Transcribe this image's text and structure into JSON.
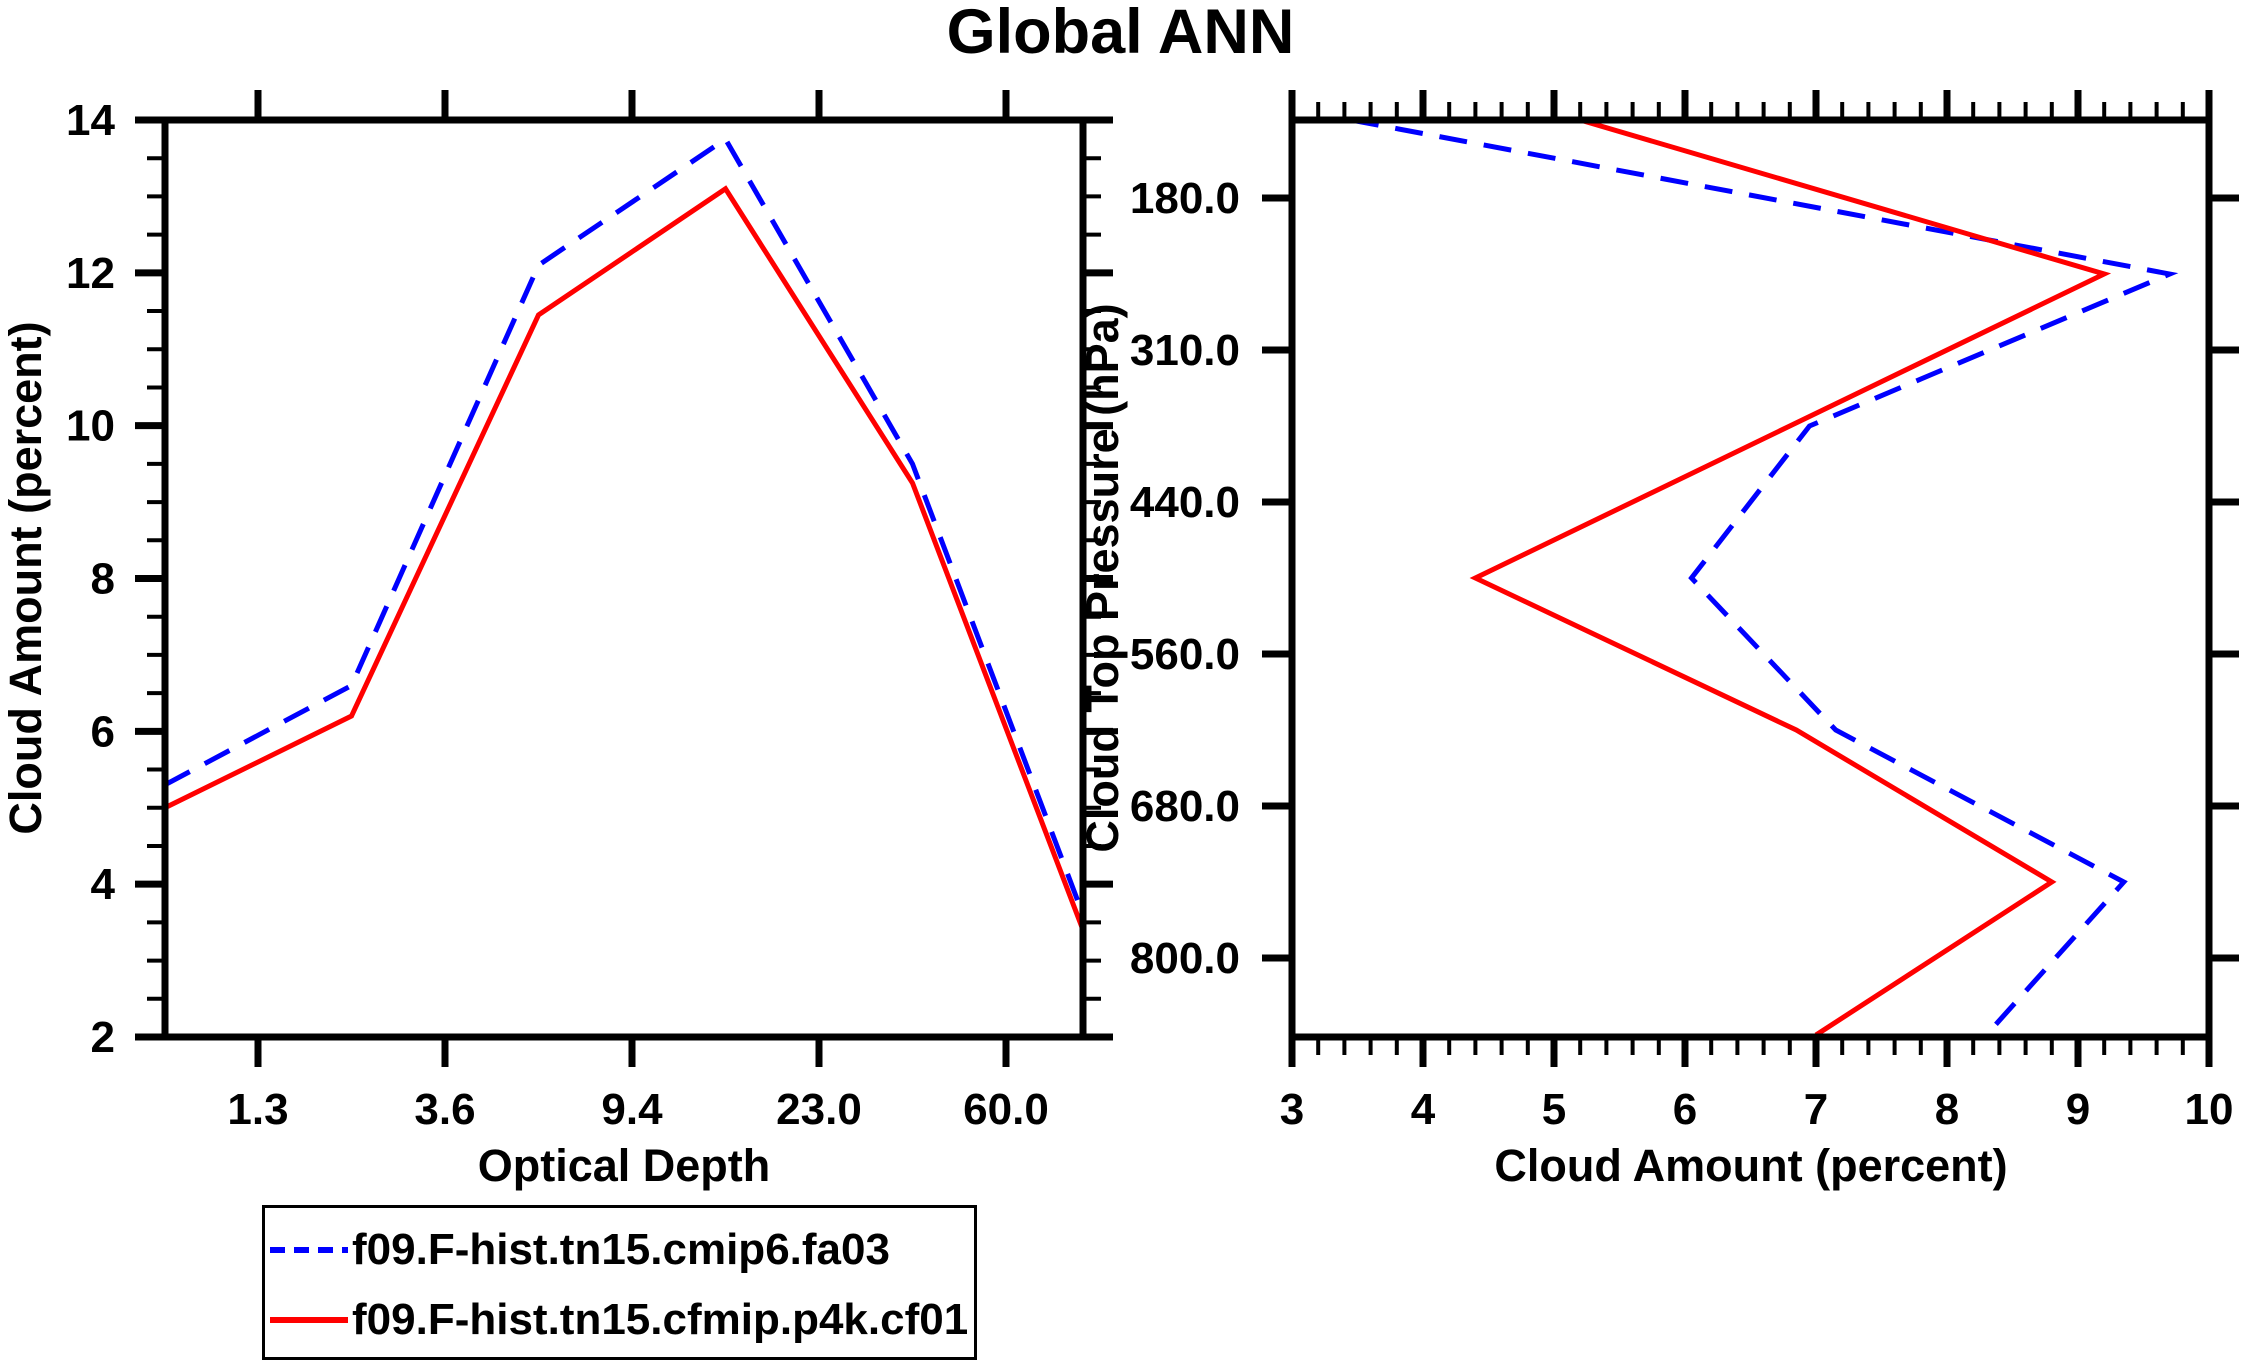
{
  "title": "Global ANN",
  "colors": {
    "background": "#FFFFFF",
    "axis": "#000000",
    "series_dashed": "#0000FF",
    "series_solid": "#FF0000"
  },
  "legend": {
    "entries": [
      {
        "label": "f09.F-hist.tn15.cmip6.fa03",
        "color": "#0000FF",
        "line_style": "dashed"
      },
      {
        "label": "f09.F-hist.tn15.cfmip.p4k.cf01",
        "color": "#FF0000",
        "line_style": "solid"
      }
    ]
  },
  "chart_data": [
    {
      "type": "line",
      "panel": "left",
      "title": "Global ANN",
      "xlabel": "Optical Depth",
      "ylabel": "Cloud Amount (percent)",
      "x_tick_labels": [
        "1.3",
        "3.6",
        "9.4",
        "23.0",
        "60.0"
      ],
      "x_layout": "6 points per series: first on left axis edge, last on right axis edge, middle points midway between adjacent labeled ticks",
      "ylim": [
        2,
        14
      ],
      "y_major_ticks": [
        2,
        4,
        6,
        8,
        10,
        12,
        14
      ],
      "y_minor_step": 0.5,
      "grid": "off",
      "series": [
        {
          "name": "f09.F-hist.tn15.cmip6.fa03",
          "style": "dashed",
          "color": "#0000FF",
          "values": [
            5.3,
            6.6,
            12.1,
            13.75,
            9.5,
            3.6
          ]
        },
        {
          "name": "f09.F-hist.tn15.cfmip.p4k.cf01",
          "style": "solid",
          "color": "#FF0000",
          "values": [
            5.0,
            6.2,
            11.45,
            13.1,
            9.25,
            3.4
          ]
        }
      ]
    },
    {
      "type": "line",
      "panel": "right",
      "xlabel": "Cloud Amount (percent)",
      "ylabel": "Cloud Top Pressure (hPa)",
      "xlim": [
        3,
        10
      ],
      "x_major_ticks": [
        3,
        4,
        5,
        6,
        7,
        8,
        9,
        10
      ],
      "x_minor_step": 0.2,
      "y_tick_labels": [
        "180.0",
        "310.0",
        "440.0",
        "560.0",
        "680.0",
        "800.0"
      ],
      "y_layout": "pressure increases downward; 7 points per series evenly spaced from top edge to bottom edge, labeled ticks sit at bin boundaries between points",
      "grid": "off",
      "series": [
        {
          "name": "f09.F-hist.tn15.cmip6.fa03",
          "style": "dashed",
          "color": "#0000FF",
          "values": [
            3.45,
            9.7,
            6.95,
            6.05,
            7.15,
            9.35,
            8.3
          ]
        },
        {
          "name": "f09.F-hist.tn15.cfmip.p4k.cf01",
          "style": "solid",
          "color": "#FF0000",
          "values": [
            5.2,
            9.2,
            6.8,
            4.4,
            6.85,
            8.8,
            7.0
          ]
        }
      ]
    }
  ]
}
